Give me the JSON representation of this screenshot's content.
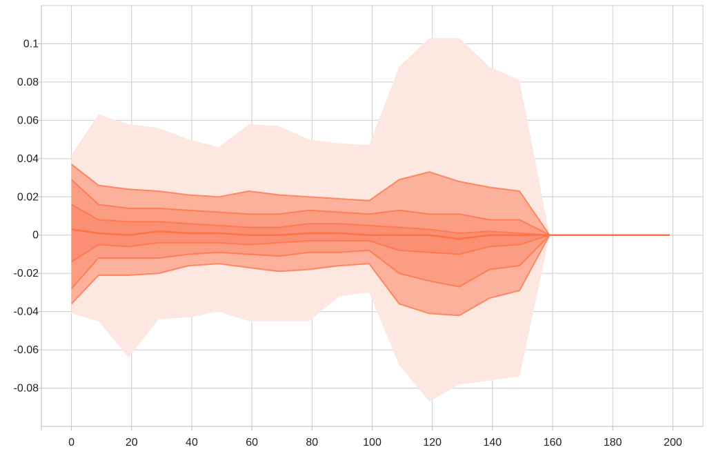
{
  "chart_data": {
    "type": "area",
    "title": "",
    "xlabel": "",
    "ylabel": "",
    "xlim": [
      -10,
      210
    ],
    "ylim": [
      -0.1,
      0.12
    ],
    "xticks": [
      0,
      20,
      40,
      60,
      80,
      100,
      120,
      140,
      160,
      180,
      200
    ],
    "xtick_labels": [
      "0",
      "20",
      "40",
      "60",
      "80",
      "100",
      "120",
      "140",
      "160",
      "180",
      "200"
    ],
    "yticks": [
      -0.08,
      -0.06,
      -0.04,
      -0.02,
      0,
      0.02,
      0.04,
      0.06,
      0.08,
      0.1
    ],
    "ytick_labels": [
      "-0.08",
      "-0.06",
      "-0.04",
      "-0.02",
      "0",
      "0.02",
      "0.04",
      "0.06",
      "0.08",
      "0.1"
    ],
    "grid": true,
    "legend": "none",
    "colors": {
      "line": "#ff7043",
      "band_outer": "#fde7e1",
      "band_2": "#fcb19c",
      "band_3": "#fb9d82",
      "band_4": "#fa8f73",
      "grid": "#cccccc"
    },
    "x": [
      0,
      9,
      19,
      29,
      39,
      49,
      59,
      69,
      79,
      89,
      99,
      109,
      119,
      129,
      139,
      149,
      159
    ],
    "bands": [
      {
        "lower": [
          -0.041,
          -0.045,
          -0.064,
          -0.044,
          -0.043,
          -0.04,
          -0.045,
          -0.045,
          -0.045,
          -0.032,
          -0.03,
          -0.068,
          -0.087,
          -0.078,
          -0.076,
          -0.074,
          0
        ],
        "upper": [
          0.042,
          0.063,
          0.058,
          0.056,
          0.05,
          0.046,
          0.058,
          0.057,
          0.05,
          0.048,
          0.047,
          0.088,
          0.103,
          0.103,
          0.088,
          0.081,
          0
        ]
      },
      {
        "lower": [
          -0.036,
          -0.021,
          -0.021,
          -0.02,
          -0.016,
          -0.015,
          -0.017,
          -0.019,
          -0.018,
          -0.016,
          -0.015,
          -0.036,
          -0.041,
          -0.042,
          -0.033,
          -0.029,
          0
        ],
        "upper": [
          0.037,
          0.026,
          0.024,
          0.023,
          0.021,
          0.02,
          0.023,
          0.021,
          0.02,
          0.019,
          0.018,
          0.029,
          0.033,
          0.028,
          0.025,
          0.023,
          0
        ]
      },
      {
        "lower": [
          -0.028,
          -0.012,
          -0.012,
          -0.012,
          -0.01,
          -0.009,
          -0.01,
          -0.011,
          -0.009,
          -0.009,
          -0.008,
          -0.02,
          -0.024,
          -0.027,
          -0.018,
          -0.016,
          0
        ],
        "upper": [
          0.029,
          0.016,
          0.014,
          0.014,
          0.013,
          0.012,
          0.011,
          0.011,
          0.013,
          0.012,
          0.011,
          0.013,
          0.011,
          0.011,
          0.008,
          0.008,
          0
        ]
      },
      {
        "lower": [
          -0.014,
          -0.005,
          -0.006,
          -0.004,
          -0.004,
          -0.004,
          -0.005,
          -0.004,
          -0.003,
          -0.003,
          -0.003,
          -0.008,
          -0.009,
          -0.01,
          -0.006,
          -0.005,
          0
        ],
        "upper": [
          0.016,
          0.008,
          0.007,
          0.007,
          0.006,
          0.005,
          0.004,
          0.004,
          0.006,
          0.006,
          0.005,
          0.004,
          0.003,
          0.001,
          0.002,
          0.001,
          0
        ]
      }
    ],
    "median": {
      "x": [
        0,
        9,
        19,
        29,
        39,
        49,
        59,
        69,
        79,
        89,
        99,
        109,
        119,
        129,
        139,
        149,
        159,
        199
      ],
      "y": [
        0.003,
        0.001,
        0.0,
        0.002,
        0.001,
        0.001,
        0.0,
        0.0,
        0.001,
        0.001,
        0.0,
        0.0,
        0.0,
        -0.002,
        0.0,
        0.0,
        0.0,
        0.0
      ]
    }
  }
}
